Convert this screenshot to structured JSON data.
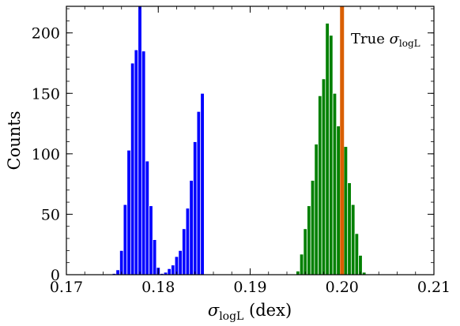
{
  "chart_data": {
    "type": "bar",
    "xlabel": {
      "sym": "σ",
      "sub": "logL",
      "unit": " (dex)"
    },
    "ylabel": "Counts",
    "xlim": [
      0.17,
      0.21
    ],
    "ylim": [
      0,
      222
    ],
    "xticks": [
      "0.17",
      "0.18",
      "0.19",
      "0.20",
      "0.21"
    ],
    "yticks": [
      "0",
      "50",
      "100",
      "150",
      "200"
    ],
    "bin_width": 0.0004,
    "series": [
      {
        "color": "#0000ff",
        "x": [
          0.1752,
          0.1756,
          0.176,
          0.1764,
          0.1768,
          0.1772,
          0.1776,
          0.178,
          0.1784,
          0.1788,
          0.1792,
          0.1796,
          0.18,
          0.1804,
          0.1808,
          0.1812,
          0.1816,
          0.182,
          0.1824,
          0.1828,
          0.1832,
          0.1836,
          0.184,
          0.1844,
          0.1848
        ],
        "values": [
          1,
          4,
          20,
          58,
          103,
          175,
          186,
          222,
          185,
          94,
          57,
          29,
          6,
          1,
          2,
          5,
          8,
          15,
          20,
          38,
          55,
          78,
          110,
          135,
          150
        ]
      },
      {
        "color": "#008000",
        "x": [
          0.1952,
          0.1956,
          0.196,
          0.1964,
          0.1968,
          0.1972,
          0.1976,
          0.198,
          0.1984,
          0.1988,
          0.1992,
          0.1996,
          0.2,
          0.2004,
          0.2008,
          0.2012,
          0.2016,
          0.202,
          0.2024,
          0.2028,
          0.2032,
          0.2036,
          0.204,
          0.2044,
          0.2048
        ],
        "values": [
          3,
          17,
          38,
          57,
          78,
          108,
          148,
          162,
          208,
          198,
          150,
          123,
          124,
          106,
          76,
          58,
          34,
          16,
          2,
          0,
          0,
          0,
          0,
          0,
          0
        ]
      }
    ],
    "annotation": {
      "value": 0.2,
      "color": "#d95f02",
      "label": {
        "prefix": "True ",
        "sym": "σ",
        "sub": "logL"
      }
    }
  }
}
